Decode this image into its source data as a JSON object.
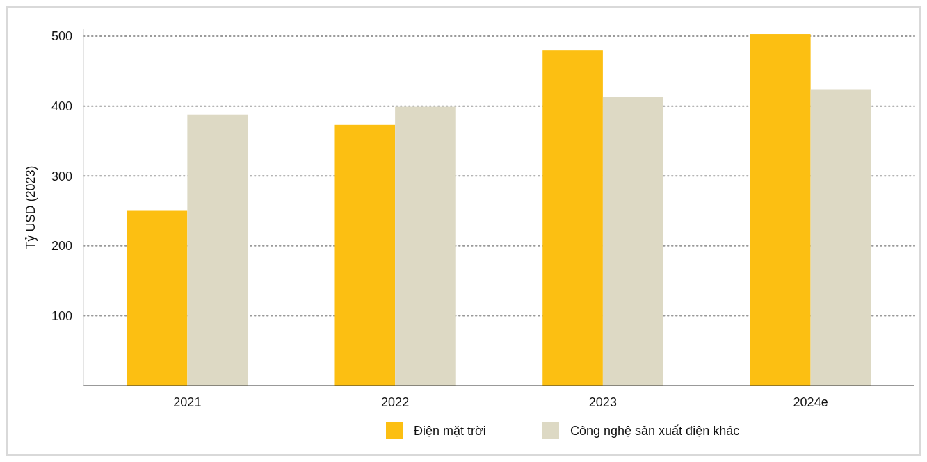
{
  "chart_data": {
    "type": "bar",
    "ylabel": "Tỷ USD (2023)",
    "categories": [
      "2021",
      "2022",
      "2023",
      "2024e"
    ],
    "series": [
      {
        "name": "Điện mặt trời",
        "color": "#fcbf12",
        "values": [
          251,
          373,
          480,
          503
        ]
      },
      {
        "name": "Công nghệ sản xuất điện khác",
        "color": "#ddd9c4",
        "values": [
          388,
          399,
          413,
          424
        ]
      }
    ],
    "ylim": [
      0,
      510
    ],
    "yticks": [
      100,
      200,
      300,
      400,
      500
    ],
    "grid": "y",
    "legend": "bottom"
  }
}
